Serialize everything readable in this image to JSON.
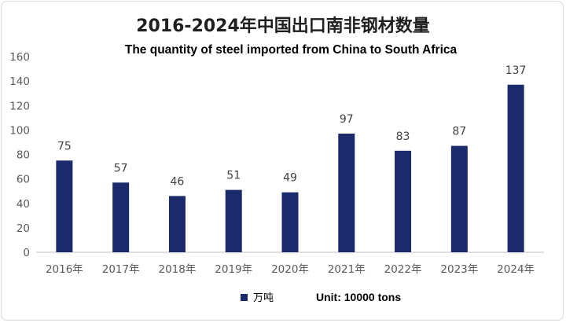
{
  "chart_data": {
    "type": "bar",
    "title": "2016-2024年中国出口南非钢材数量",
    "subtitle": "The quantity of steel imported from China to South Africa",
    "categories": [
      "2016年",
      "2017年",
      "2018年",
      "2019年",
      "2020年",
      "2021年",
      "2022年",
      "2023年",
      "2024年"
    ],
    "series": [
      {
        "name": "万吨",
        "values": [
          75,
          57,
          46,
          51,
          49,
          97,
          83,
          87,
          137
        ]
      }
    ],
    "ylim": [
      0,
      160
    ],
    "yticks": [
      0,
      20,
      40,
      60,
      80,
      100,
      120,
      140,
      160
    ],
    "grid": false,
    "data_labels": true,
    "legend": {
      "position": "bottom",
      "unit_note": "Unit: 10000 tons"
    },
    "colors": {
      "bar": "#1b2a6b",
      "axis": "#bfbfbf"
    }
  }
}
